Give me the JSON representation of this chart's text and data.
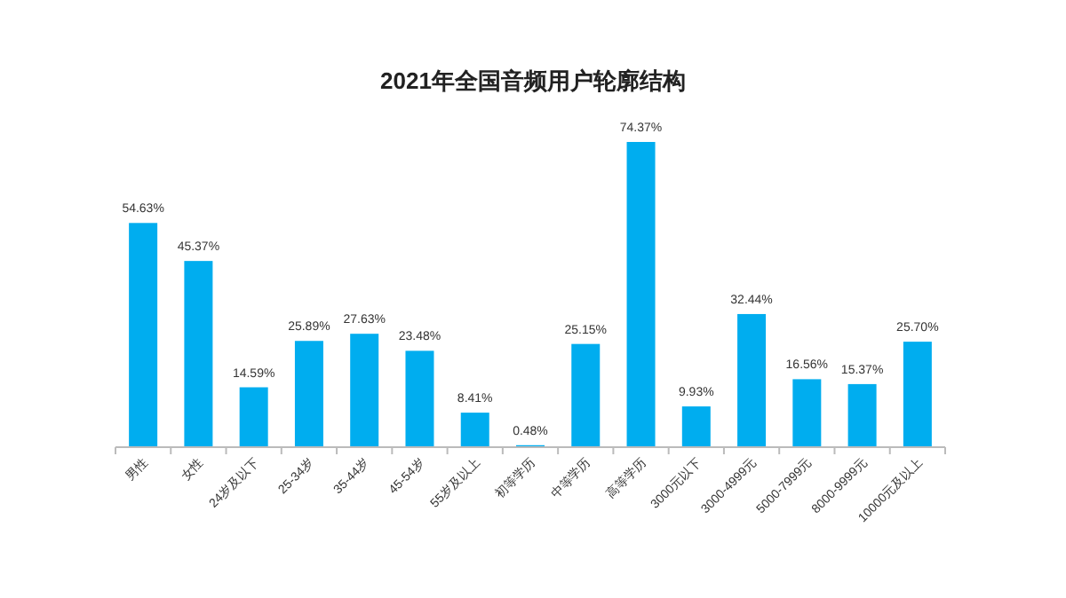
{
  "chart_data": {
    "type": "bar",
    "title": "2021年全国音频用户轮廓结构",
    "categories": [
      "男性",
      "女性",
      "24岁及以下",
      "25-34岁",
      "35-44岁",
      "45-54岁",
      "55岁及以上",
      "初等学历",
      "中等学历",
      "高等学历",
      "3000元以下",
      "3000-4999元",
      "5000-7999元",
      "8000-9999元",
      "10000元及以上"
    ],
    "values": [
      54.63,
      45.37,
      14.59,
      25.89,
      27.63,
      23.48,
      8.41,
      0.48,
      25.15,
      74.37,
      9.93,
      32.44,
      16.56,
      15.37,
      25.7
    ],
    "value_labels": [
      "54.63%",
      "45.37%",
      "14.59%",
      "25.89%",
      "27.63%",
      "23.48%",
      "8.41%",
      "0.48%",
      "25.15%",
      "74.37%",
      "9.93%",
      "32.44%",
      "16.56%",
      "15.37%",
      "25.70%"
    ],
    "color": "#00adef",
    "tick_labels": "x"
  }
}
